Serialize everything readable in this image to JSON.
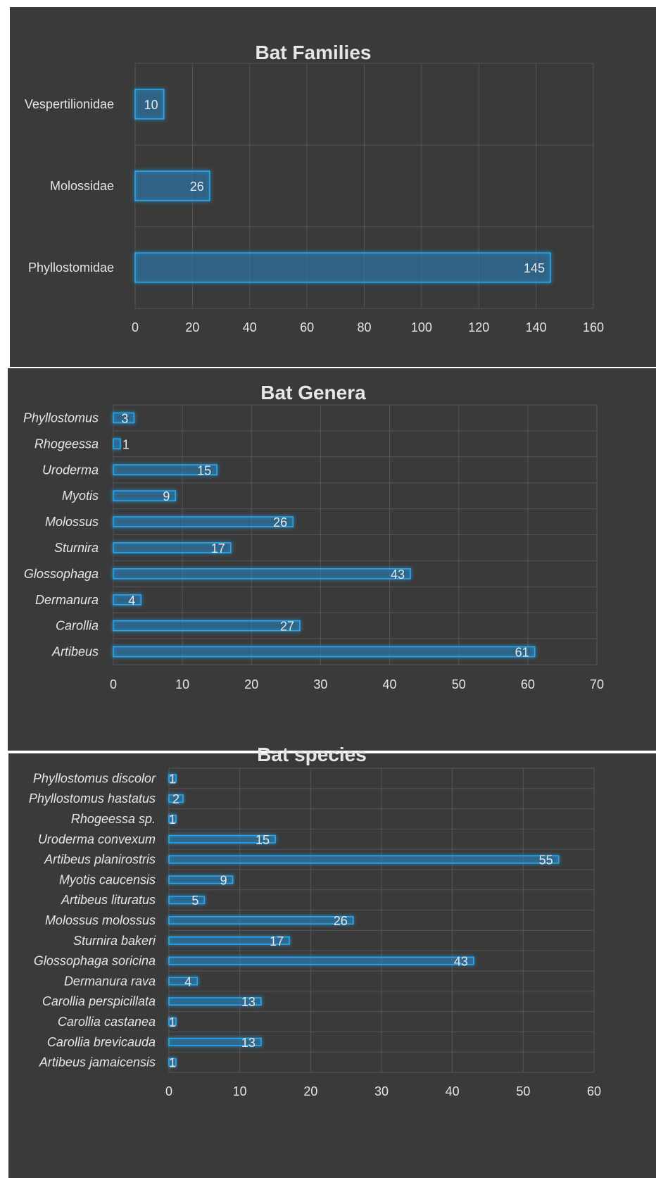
{
  "chart_data": [
    {
      "type": "bar",
      "orientation": "horizontal",
      "title": "Bat Families",
      "categories": [
        "Vespertilionidae",
        "Molossidae",
        "Phyllostomidae"
      ],
      "values": [
        10,
        26,
        145
      ],
      "xlim": [
        0,
        160
      ],
      "ticks": [
        0,
        20,
        40,
        60,
        80,
        100,
        120,
        140,
        160
      ],
      "italic_labels": false,
      "grid": true,
      "colors": {
        "bar": "#27a9f0",
        "background": "#3a3a3a",
        "text": "#e6e6e6"
      }
    },
    {
      "type": "bar",
      "orientation": "horizontal",
      "title": "Bat Genera",
      "categories": [
        "Phyllostomus",
        "Rhogeessa",
        "Uroderma",
        "Myotis",
        "Molossus",
        "Sturnira",
        "Glossophaga",
        "Dermanura",
        "Carollia",
        "Artibeus"
      ],
      "values": [
        3,
        1,
        15,
        9,
        26,
        17,
        43,
        4,
        27,
        61
      ],
      "xlim": [
        0,
        70
      ],
      "ticks": [
        0,
        10,
        20,
        30,
        40,
        50,
        60,
        70
      ],
      "italic_labels": true,
      "grid": true,
      "colors": {
        "bar": "#27a9f0",
        "background": "#3a3a3a",
        "text": "#e6e6e6"
      }
    },
    {
      "type": "bar",
      "orientation": "horizontal",
      "title": "Bat species",
      "categories": [
        "Phyllostomus discolor",
        "Phyllostomus hastatus",
        "Rhogeessa sp.",
        "Uroderma convexum",
        "Artibeus planirostris",
        "Myotis caucensis",
        "Artibeus lituratus",
        "Molossus molossus",
        "Sturnira bakeri",
        "Glossophaga soricina",
        "Dermanura rava",
        "Carollia perspicillata",
        "Carollia castanea",
        "Carollia brevicauda",
        "Artibeus jamaicensis"
      ],
      "values": [
        1,
        2,
        1,
        15,
        55,
        9,
        5,
        26,
        17,
        43,
        4,
        13,
        1,
        13,
        1
      ],
      "xlim": [
        0,
        60
      ],
      "ticks": [
        0,
        10,
        20,
        30,
        40,
        50,
        60
      ],
      "italic_labels": true,
      "grid": true,
      "colors": {
        "bar": "#27a9f0",
        "background": "#3a3a3a",
        "text": "#e6e6e6"
      }
    }
  ]
}
